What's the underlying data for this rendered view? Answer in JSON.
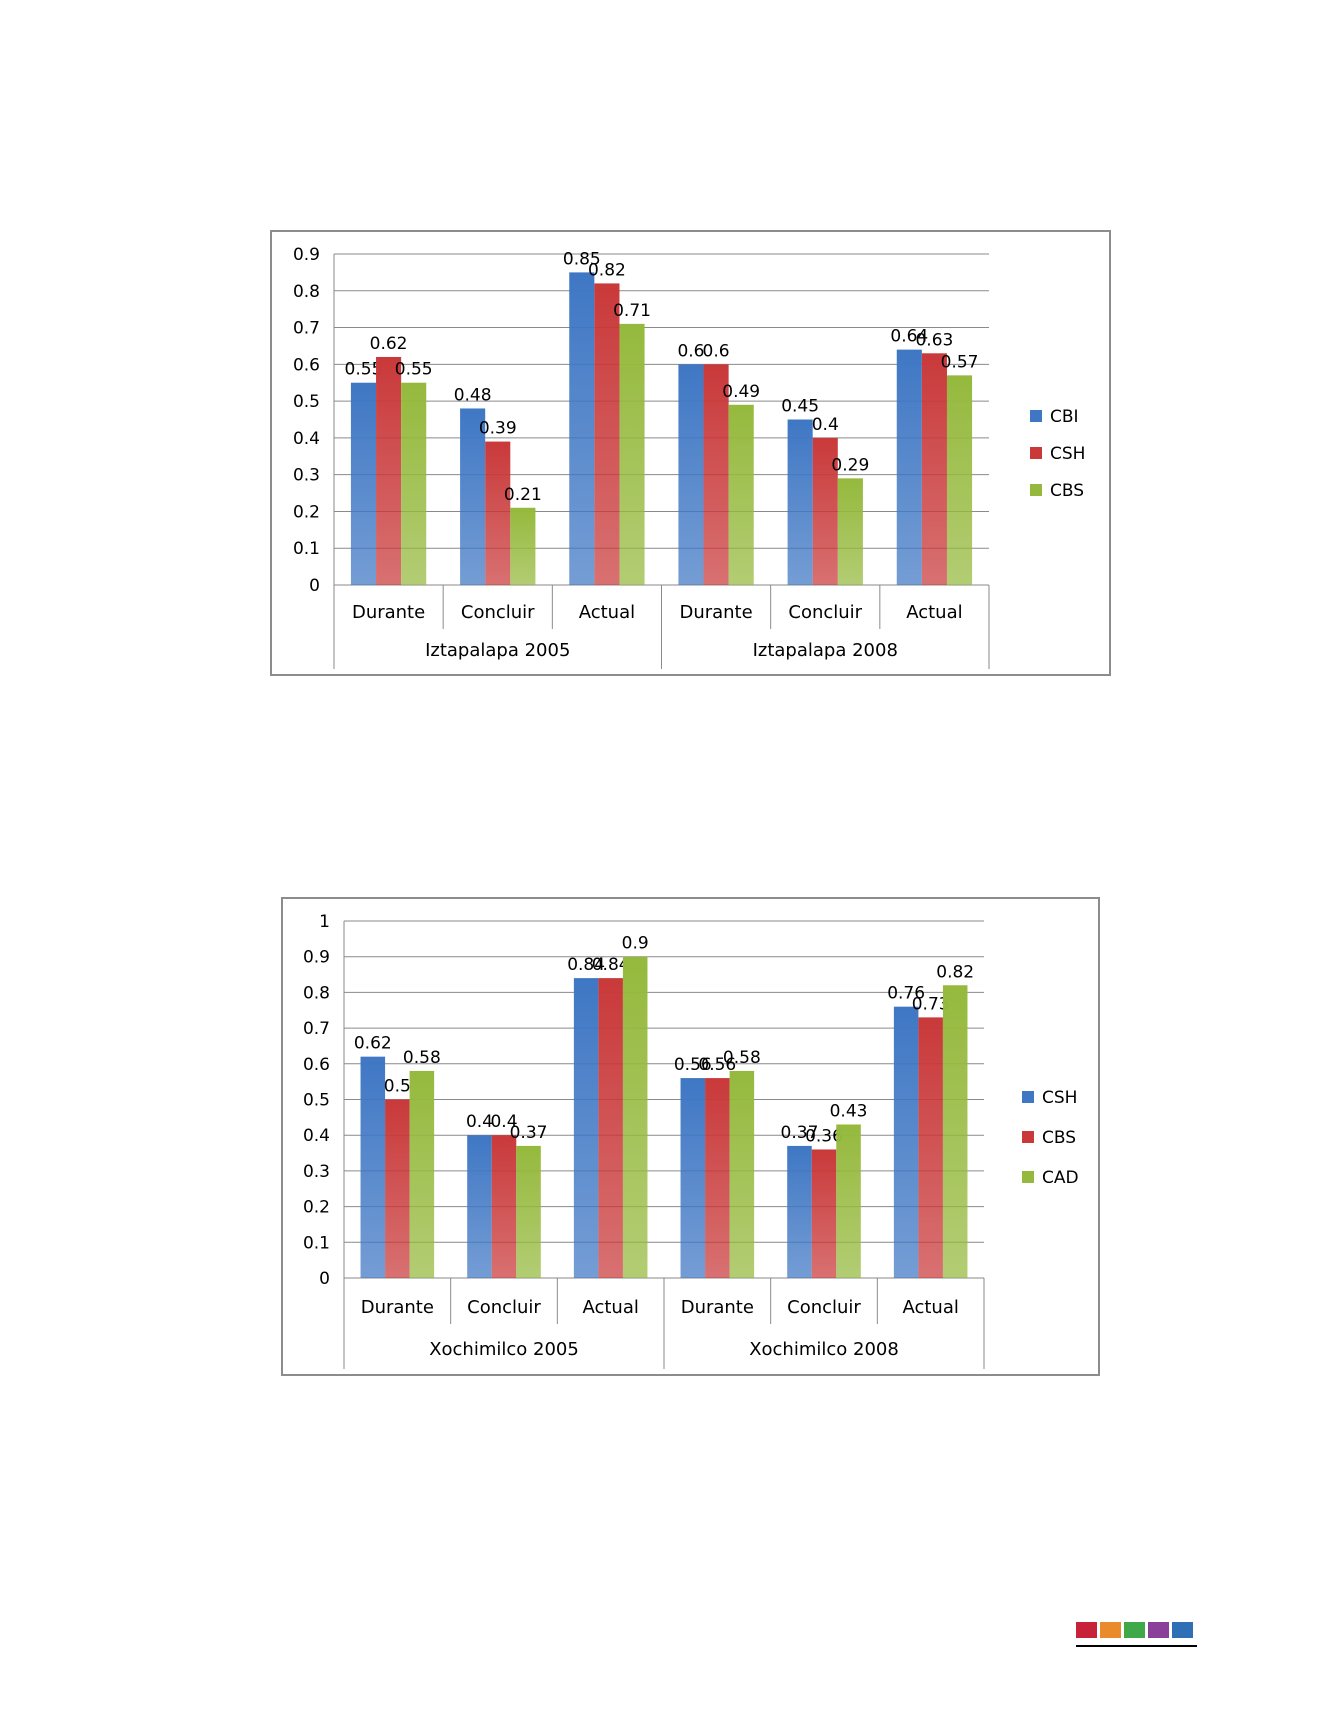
{
  "chart_data": [
    {
      "type": "bar",
      "groups": [
        "Iztapalapa 2005",
        "Iztapalapa 2008"
      ],
      "categories": [
        "Durante",
        "Concluir",
        "Actual",
        "Durante",
        "Concluir",
        "Actual"
      ],
      "series": [
        {
          "name": "CBI",
          "color": "#3f77c4",
          "values": [
            0.55,
            0.48,
            0.85,
            0.6,
            0.45,
            0.64
          ]
        },
        {
          "name": "CSH",
          "color": "#c9393a",
          "values": [
            0.62,
            0.39,
            0.82,
            0.6,
            0.4,
            0.63
          ]
        },
        {
          "name": "CBS",
          "color": "#95b93d",
          "values": [
            0.55,
            0.21,
            0.71,
            0.49,
            0.29,
            0.57
          ]
        }
      ],
      "yticks": [
        "0",
        "0.1",
        "0.2",
        "0.3",
        "0.4",
        "0.5",
        "0.6",
        "0.7",
        "0.8",
        "0.9"
      ],
      "ylim": [
        0,
        0.9
      ],
      "grid": true,
      "legend": "right"
    },
    {
      "type": "bar",
      "groups": [
        "Xochimilco 2005",
        "Xochimilco 2008"
      ],
      "categories": [
        "Durante",
        "Concluir",
        "Actual",
        "Durante",
        "Concluir",
        "Actual"
      ],
      "series": [
        {
          "name": "CSH",
          "color": "#3f77c4",
          "values": [
            0.62,
            0.4,
            0.84,
            0.56,
            0.37,
            0.76
          ]
        },
        {
          "name": "CBS",
          "color": "#c9393a",
          "values": [
            0.5,
            0.4,
            0.84,
            0.56,
            0.36,
            0.73
          ]
        },
        {
          "name": "CAD",
          "color": "#95b93d",
          "values": [
            0.58,
            0.37,
            0.9,
            0.58,
            0.43,
            0.82
          ]
        }
      ],
      "yticks": [
        "0",
        "0.1",
        "0.2",
        "0.3",
        "0.4",
        "0.5",
        "0.6",
        "0.7",
        "0.8",
        "0.9",
        "1"
      ],
      "ylim": [
        0,
        1
      ],
      "grid": true,
      "legend": "right"
    }
  ],
  "footer": {
    "colors": [
      "#c8213a",
      "#e98a2b",
      "#3fa848",
      "#8a3f9a",
      "#2f6fb5"
    ]
  }
}
